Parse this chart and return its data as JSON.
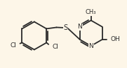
{
  "bg_color": "#fdf6e8",
  "line_color": "#2a2a2a",
  "line_width": 1.3,
  "font_size": 6.5,
  "fig_width": 1.81,
  "fig_height": 0.98,
  "dpi": 100,
  "xlim": [
    0.0,
    7.2
  ],
  "ylim": [
    1.0,
    5.0
  ]
}
